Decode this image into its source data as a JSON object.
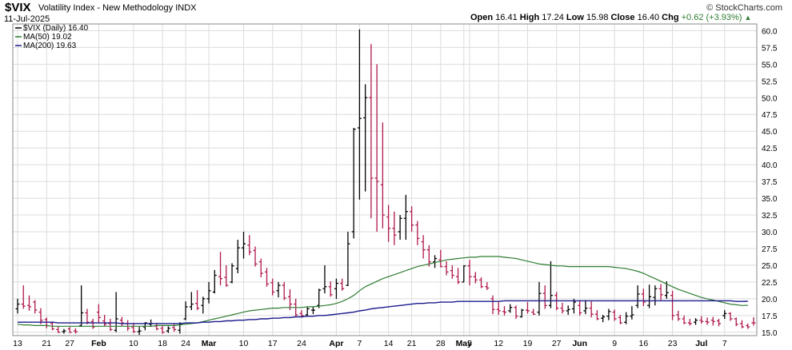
{
  "header": {
    "symbol": "$VIX",
    "description": "Volatility Index - New Methodology",
    "exchange": "INDX",
    "date": "11-Jul-2025",
    "copyright": "© StockCharts.com",
    "open_label": "Open",
    "open": "16.41",
    "high_label": "High",
    "high": "17.24",
    "low_label": "Low",
    "low": "15.98",
    "close_label": "Close",
    "close": "16.40",
    "chg_label": "Chg",
    "chg": "+0.62 (+3.93%)",
    "chg_icon": "up-triangle-icon"
  },
  "legend": [
    {
      "label": "$VIX (Daily) 16.40",
      "color": "#000000"
    },
    {
      "label": "MA(50) 19.02",
      "color": "#2e7d32"
    },
    {
      "label": "MA(200) 19.63",
      "color": "#1a1a8c"
    }
  ],
  "colors": {
    "up": "#000000",
    "down": "#b0174e",
    "ma50": "#2e7d32",
    "ma200": "#1a1a8c",
    "grid": "#dcdcdc"
  },
  "chart_data": {
    "type": "ohlc",
    "ylim": [
      14.5,
      61
    ],
    "y_ticks": [
      15.0,
      17.5,
      20.0,
      22.5,
      25.0,
      27.5,
      30.0,
      32.5,
      35.0,
      37.5,
      40.0,
      42.5,
      45.0,
      47.5,
      50.0,
      52.5,
      55.0,
      57.5,
      60.0
    ],
    "x_tick_labels": [
      {
        "label": "13",
        "bar": 0,
        "major": false
      },
      {
        "label": "21",
        "bar": 5,
        "major": false
      },
      {
        "label": "27",
        "bar": 9,
        "major": false
      },
      {
        "label": "Feb",
        "bar": 14,
        "major": true
      },
      {
        "label": "10",
        "bar": 20,
        "major": false
      },
      {
        "label": "18",
        "bar": 25,
        "major": false
      },
      {
        "label": "24",
        "bar": 29,
        "major": false
      },
      {
        "label": "Mar",
        "bar": 33,
        "major": true
      },
      {
        "label": "10",
        "bar": 39,
        "major": false
      },
      {
        "label": "17",
        "bar": 44,
        "major": false
      },
      {
        "label": "24",
        "bar": 49,
        "major": false
      },
      {
        "label": "Apr",
        "bar": 55,
        "major": true
      },
      {
        "label": "7",
        "bar": 59,
        "major": false
      },
      {
        "label": "14",
        "bar": 64,
        "major": false
      },
      {
        "label": "21",
        "bar": 68,
        "major": false
      },
      {
        "label": "28",
        "bar": 73,
        "major": false
      },
      {
        "label": "May",
        "bar": 77,
        "major": true
      },
      {
        "label": "5",
        "bar": 78,
        "major": false
      },
      {
        "label": "12",
        "bar": 83,
        "major": false
      },
      {
        "label": "19",
        "bar": 88,
        "major": false
      },
      {
        "label": "27",
        "bar": 93,
        "major": false
      },
      {
        "label": "Jun",
        "bar": 97,
        "major": true
      },
      {
        "label": "9",
        "bar": 103,
        "major": false
      },
      {
        "label": "16",
        "bar": 108,
        "major": false
      },
      {
        "label": "23",
        "bar": 113,
        "major": false
      },
      {
        "label": "Jul",
        "bar": 118,
        "major": true
      },
      {
        "label": "7",
        "bar": 122,
        "major": false
      }
    ],
    "ohlc": [
      [
        18.5,
        20.0,
        17.8,
        19.2
      ],
      [
        19.2,
        22.0,
        18.5,
        18.9
      ],
      [
        19.0,
        20.5,
        18.2,
        18.8
      ],
      [
        19.5,
        19.8,
        17.8,
        18.3
      ],
      [
        18.0,
        18.6,
        16.2,
        16.8
      ],
      [
        16.9,
        17.2,
        15.6,
        16.0
      ],
      [
        16.3,
        16.6,
        15.3,
        15.5
      ],
      [
        15.4,
        15.9,
        14.9,
        15.0
      ],
      [
        15.1,
        15.5,
        14.8,
        15.2
      ],
      [
        15.5,
        15.8,
        14.9,
        15.0
      ],
      [
        15.2,
        15.6,
        14.8,
        15.1
      ],
      [
        16.0,
        22.0,
        15.8,
        17.9
      ],
      [
        17.9,
        18.5,
        16.2,
        16.5
      ],
      [
        16.6,
        17.0,
        15.5,
        15.8
      ],
      [
        18.0,
        19.2,
        16.4,
        17.2
      ],
      [
        16.7,
        17.6,
        15.9,
        16.2
      ],
      [
        16.3,
        17.0,
        15.2,
        15.4
      ],
      [
        15.3,
        21.0,
        15.0,
        17.0
      ],
      [
        16.8,
        17.3,
        15.9,
        16.4
      ],
      [
        16.3,
        16.8,
        15.2,
        15.6
      ],
      [
        15.7,
        16.4,
        14.9,
        15.1
      ],
      [
        15.1,
        15.8,
        14.6,
        15.2
      ],
      [
        15.8,
        16.5,
        15.3,
        16.4
      ],
      [
        16.2,
        16.9,
        15.8,
        16.3
      ],
      [
        15.9,
        16.4,
        15.3,
        15.5
      ],
      [
        15.6,
        16.0,
        14.8,
        15.0
      ],
      [
        15.2,
        15.9,
        14.9,
        15.6
      ],
      [
        15.7,
        16.2,
        15.1,
        15.4
      ],
      [
        15.3,
        16.5,
        14.8,
        16.2
      ],
      [
        17.0,
        19.6,
        16.8,
        18.8
      ],
      [
        18.8,
        21.0,
        18.3,
        19.2
      ],
      [
        19.3,
        21.3,
        18.3,
        18.6
      ],
      [
        19.0,
        20.3,
        17.8,
        20.0
      ],
      [
        20.0,
        22.5,
        19.3,
        21.2
      ],
      [
        21.0,
        24.3,
        20.8,
        23.5
      ],
      [
        23.3,
        27.0,
        22.0,
        23.0
      ],
      [
        23.2,
        25.0,
        21.8,
        22.0
      ],
      [
        22.5,
        25.3,
        22.3,
        24.9
      ],
      [
        24.5,
        28.8,
        23.8,
        27.6
      ],
      [
        27.6,
        30.0,
        26.0,
        28.2
      ],
      [
        28.0,
        29.5,
        26.5,
        27.0
      ],
      [
        27.2,
        27.8,
        24.8,
        25.2
      ],
      [
        25.5,
        26.0,
        23.2,
        23.8
      ],
      [
        24.0,
        24.6,
        21.8,
        22.2
      ],
      [
        22.4,
        23.0,
        20.5,
        21.0
      ],
      [
        21.2,
        22.5,
        20.2,
        22.0
      ],
      [
        22.0,
        22.5,
        19.8,
        20.1
      ],
      [
        20.3,
        21.4,
        18.3,
        19.2
      ],
      [
        19.2,
        20.0,
        17.3,
        17.6
      ],
      [
        17.8,
        18.3,
        17.2,
        17.5
      ],
      [
        17.6,
        18.8,
        17.3,
        18.5
      ],
      [
        18.3,
        18.8,
        17.7,
        18.3
      ],
      [
        19.0,
        21.5,
        18.6,
        21.3
      ],
      [
        21.5,
        25.0,
        20.8,
        21.8
      ],
      [
        21.8,
        22.6,
        20.3,
        20.6
      ],
      [
        21.5,
        23.0,
        20.0,
        22.3
      ],
      [
        22.3,
        23.0,
        21.2,
        21.5
      ],
      [
        22.0,
        30.0,
        21.9,
        28.2
      ],
      [
        30.0,
        45.5,
        29.0,
        45.3
      ],
      [
        45.5,
        60.2,
        34.8,
        46.9
      ],
      [
        47.0,
        52.0,
        36.0,
        50.0
      ],
      [
        50.0,
        58.0,
        32.0,
        38.0
      ],
      [
        38.0,
        55.0,
        30.0,
        37.5
      ],
      [
        37.0,
        46.3,
        30.5,
        32.5
      ],
      [
        32.2,
        34.0,
        28.5,
        30.5
      ],
      [
        30.5,
        33.0,
        28.0,
        29.5
      ],
      [
        30.0,
        32.5,
        28.8,
        32.0
      ],
      [
        32.0,
        35.5,
        28.8,
        33.0
      ],
      [
        33.0,
        33.8,
        30.0,
        31.0
      ],
      [
        31.0,
        31.6,
        28.0,
        29.0
      ],
      [
        28.5,
        29.5,
        26.0,
        27.3
      ],
      [
        27.3,
        28.0,
        24.8,
        25.5
      ],
      [
        25.5,
        26.5,
        24.6,
        26.0
      ],
      [
        25.8,
        27.3,
        24.7,
        24.8
      ],
      [
        24.8,
        25.6,
        23.5,
        24.0
      ],
      [
        24.2,
        25.0,
        23.0,
        23.5
      ],
      [
        23.3,
        24.6,
        22.2,
        22.5
      ],
      [
        22.5,
        25.0,
        22.5,
        24.9
      ],
      [
        24.9,
        25.8,
        22.0,
        23.3
      ],
      [
        23.3,
        24.0,
        22.3,
        22.8
      ],
      [
        22.8,
        23.2,
        21.6,
        21.8
      ],
      [
        21.8,
        22.5,
        21.3,
        21.6
      ],
      [
        20.0,
        20.5,
        17.7,
        18.4
      ],
      [
        18.4,
        19.5,
        17.6,
        18.2
      ],
      [
        18.1,
        18.9,
        17.5,
        18.0
      ],
      [
        18.2,
        19.2,
        17.9,
        18.7
      ],
      [
        18.7,
        19.0,
        17.0,
        17.4
      ],
      [
        17.3,
        18.5,
        17.2,
        18.3
      ],
      [
        18.3,
        19.5,
        17.8,
        18.2
      ],
      [
        18.0,
        18.5,
        17.6,
        17.7
      ],
      [
        18.0,
        22.5,
        17.5,
        20.8
      ],
      [
        20.8,
        22.0,
        18.5,
        19.0
      ],
      [
        19.0,
        25.6,
        18.6,
        20.5
      ],
      [
        20.5,
        21.0,
        18.3,
        18.6
      ],
      [
        18.6,
        19.4,
        17.8,
        18.2
      ],
      [
        18.2,
        19.0,
        17.6,
        18.4
      ],
      [
        18.5,
        20.0,
        17.8,
        19.5
      ],
      [
        19.0,
        19.8,
        17.5,
        17.9
      ],
      [
        18.2,
        19.8,
        17.7,
        18.6
      ],
      [
        18.6,
        19.6,
        17.2,
        17.7
      ],
      [
        17.7,
        18.3,
        16.8,
        17.0
      ],
      [
        17.1,
        17.6,
        16.5,
        17.3
      ],
      [
        17.4,
        18.5,
        16.8,
        18.1
      ],
      [
        18.0,
        18.4,
        16.7,
        17.0
      ],
      [
        17.2,
        17.6,
        16.2,
        16.4
      ],
      [
        16.5,
        18.0,
        16.2,
        17.4
      ],
      [
        17.4,
        18.9,
        16.9,
        17.6
      ],
      [
        19.0,
        22.0,
        18.6,
        20.7
      ],
      [
        20.7,
        21.5,
        18.9,
        19.5
      ],
      [
        19.0,
        22.1,
        18.6,
        20.3
      ],
      [
        20.2,
        22.0,
        19.0,
        21.5
      ],
      [
        21.5,
        22.2,
        19.8,
        20.6
      ],
      [
        20.5,
        22.6,
        20.0,
        20.9
      ],
      [
        20.5,
        21.2,
        16.8,
        17.5
      ],
      [
        17.6,
        18.2,
        16.7,
        17.0
      ],
      [
        17.0,
        17.5,
        16.2,
        16.4
      ],
      [
        16.4,
        17.0,
        16.0,
        16.3
      ],
      [
        16.5,
        17.1,
        16.1,
        16.8
      ],
      [
        16.8,
        17.4,
        16.3,
        16.6
      ],
      [
        16.6,
        17.2,
        16.1,
        16.5
      ],
      [
        16.8,
        17.3,
        16.0,
        16.6
      ],
      [
        16.7,
        17.0,
        15.9,
        16.3
      ],
      [
        17.5,
        18.3,
        17.0,
        17.8
      ],
      [
        17.8,
        18.0,
        16.7,
        17.0
      ],
      [
        17.0,
        17.2,
        15.9,
        16.2
      ],
      [
        16.3,
        16.8,
        15.6,
        15.8
      ],
      [
        16.0,
        16.3,
        15.5,
        15.8
      ],
      [
        16.41,
        17.24,
        15.98,
        16.4
      ]
    ],
    "ma50": [
      16.2,
      16.1,
      16.1,
      16.0,
      16.0,
      16.0,
      15.9,
      15.9,
      15.9,
      15.9,
      15.9,
      15.9,
      15.9,
      15.9,
      15.9,
      15.9,
      15.9,
      15.9,
      15.9,
      15.9,
      15.9,
      15.9,
      15.9,
      15.9,
      16.0,
      16.0,
      16.0,
      16.0,
      16.1,
      16.2,
      16.3,
      16.4,
      16.6,
      16.8,
      17.0,
      17.2,
      17.4,
      17.6,
      17.8,
      18.0,
      18.2,
      18.3,
      18.4,
      18.5,
      18.6,
      18.6,
      18.7,
      18.7,
      18.7,
      18.7,
      18.8,
      18.8,
      18.9,
      19.0,
      19.1,
      19.3,
      19.6,
      20.0,
      20.5,
      21.2,
      21.8,
      22.2,
      22.6,
      23.0,
      23.3,
      23.6,
      23.9,
      24.2,
      24.5,
      24.8,
      25.0,
      25.2,
      25.4,
      25.6,
      25.8,
      25.9,
      26.0,
      26.1,
      26.2,
      26.2,
      26.3,
      26.3,
      26.3,
      26.3,
      26.2,
      26.1,
      26.0,
      25.8,
      25.6,
      25.4,
      25.2,
      25.1,
      25.0,
      24.9,
      24.9,
      24.8,
      24.8,
      24.8,
      24.8,
      24.8,
      24.8,
      24.8,
      24.8,
      24.7,
      24.6,
      24.5,
      24.3,
      24.1,
      23.8,
      23.4,
      23.0,
      22.6,
      22.2,
      21.8,
      21.4,
      21.1,
      20.8,
      20.5,
      20.2,
      20.0,
      19.8,
      19.6,
      19.4,
      19.2,
      19.1,
      19.0,
      19.02
    ],
    "ma200": [
      16.5,
      16.5,
      16.5,
      16.5,
      16.5,
      16.5,
      16.5,
      16.4,
      16.4,
      16.4,
      16.4,
      16.4,
      16.4,
      16.4,
      16.4,
      16.4,
      16.4,
      16.4,
      16.3,
      16.3,
      16.3,
      16.3,
      16.3,
      16.3,
      16.3,
      16.3,
      16.3,
      16.3,
      16.3,
      16.4,
      16.4,
      16.4,
      16.5,
      16.5,
      16.6,
      16.6,
      16.7,
      16.7,
      16.8,
      16.8,
      16.9,
      16.9,
      17.0,
      17.0,
      17.1,
      17.1,
      17.2,
      17.2,
      17.3,
      17.3,
      17.4,
      17.4,
      17.5,
      17.5,
      17.6,
      17.7,
      17.8,
      17.9,
      18.0,
      18.2,
      18.3,
      18.5,
      18.6,
      18.7,
      18.8,
      18.9,
      19.0,
      19.1,
      19.2,
      19.3,
      19.3,
      19.4,
      19.4,
      19.5,
      19.5,
      19.5,
      19.6,
      19.6,
      19.6,
      19.6,
      19.6,
      19.6,
      19.6,
      19.6,
      19.7,
      19.7,
      19.7,
      19.7,
      19.7,
      19.7,
      19.7,
      19.7,
      19.7,
      19.7,
      19.7,
      19.7,
      19.7,
      19.7,
      19.7,
      19.7,
      19.7,
      19.7,
      19.7,
      19.7,
      19.7,
      19.7,
      19.7,
      19.7,
      19.7,
      19.7,
      19.7,
      19.7,
      19.7,
      19.7,
      19.7,
      19.7,
      19.7,
      19.7,
      19.7,
      19.7,
      19.7,
      19.7,
      19.7,
      19.7,
      19.6,
      19.6,
      19.63
    ]
  }
}
